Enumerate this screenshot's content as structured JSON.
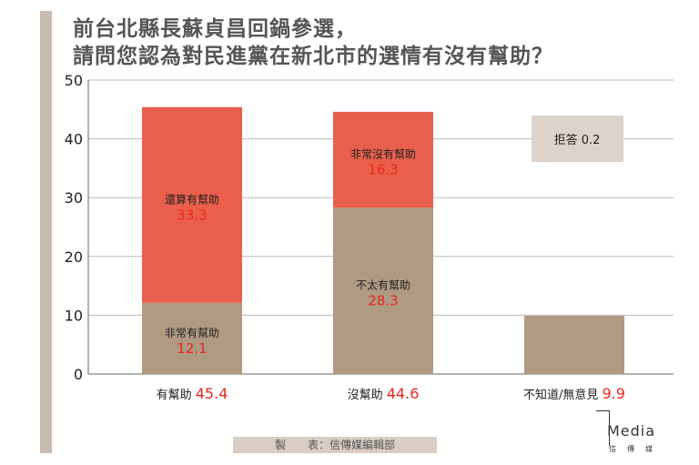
{
  "title_line1": "前台北縣長蘇貞昌回鍋參選，",
  "title_line2": "請問您認為對民進黨在新北市的選情有沒有幫助？",
  "footer": "製　　表：信傳媒編輯部",
  "logo": {
    "text": "Media",
    "sub": "信傳媒"
  },
  "colors": {
    "tan": "#b09a83",
    "red": "#ea5f4c",
    "box": "#ddd3ca",
    "value": "#e8281c"
  },
  "chart_data": {
    "type": "bar",
    "stacked": true,
    "ylim": [
      0,
      50
    ],
    "yticks": [
      0,
      10,
      20,
      30,
      40,
      50
    ],
    "grid": true,
    "categories": [
      {
        "label": "有幫助",
        "total": "45.4",
        "segments": [
          {
            "name": "非常有幫助",
            "value": 12.1,
            "color": "tan"
          },
          {
            "name": "還算有幫助",
            "value": 33.3,
            "color": "red"
          }
        ]
      },
      {
        "label": "沒幫助",
        "total": "44.6",
        "segments": [
          {
            "name": "不太有幫助",
            "value": 28.3,
            "color": "tan"
          },
          {
            "name": "非常沒有幫助",
            "value": 16.3,
            "color": "red"
          }
        ]
      },
      {
        "label": "不知道/無意見",
        "total": "9.9",
        "segments": [
          {
            "name": "",
            "value": 9.9,
            "color": "tan"
          }
        ]
      }
    ],
    "annotation": "拒答 0.2"
  }
}
